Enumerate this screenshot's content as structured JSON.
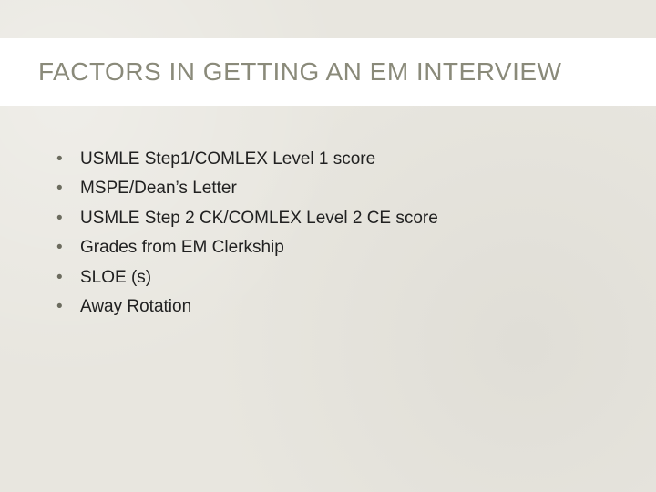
{
  "slide": {
    "title": "FACTORS IN GETTING AN EM INTERVIEW",
    "title_color": "#8a8a7a",
    "title_fontsize": 28,
    "title_band_bg": "#ffffff",
    "background_color": "#e8e6df",
    "bullet_color": "#6b6b5e",
    "text_color": "#212121",
    "body_fontsize": 19,
    "bullets": [
      "USMLE Step1/COMLEX Level 1 score",
      "MSPE/Dean’s Letter",
      "USMLE Step 2 CK/COMLEX Level 2 CE score",
      "Grades from EM Clerkship",
      "SLOE (s)",
      "Away Rotation"
    ]
  }
}
